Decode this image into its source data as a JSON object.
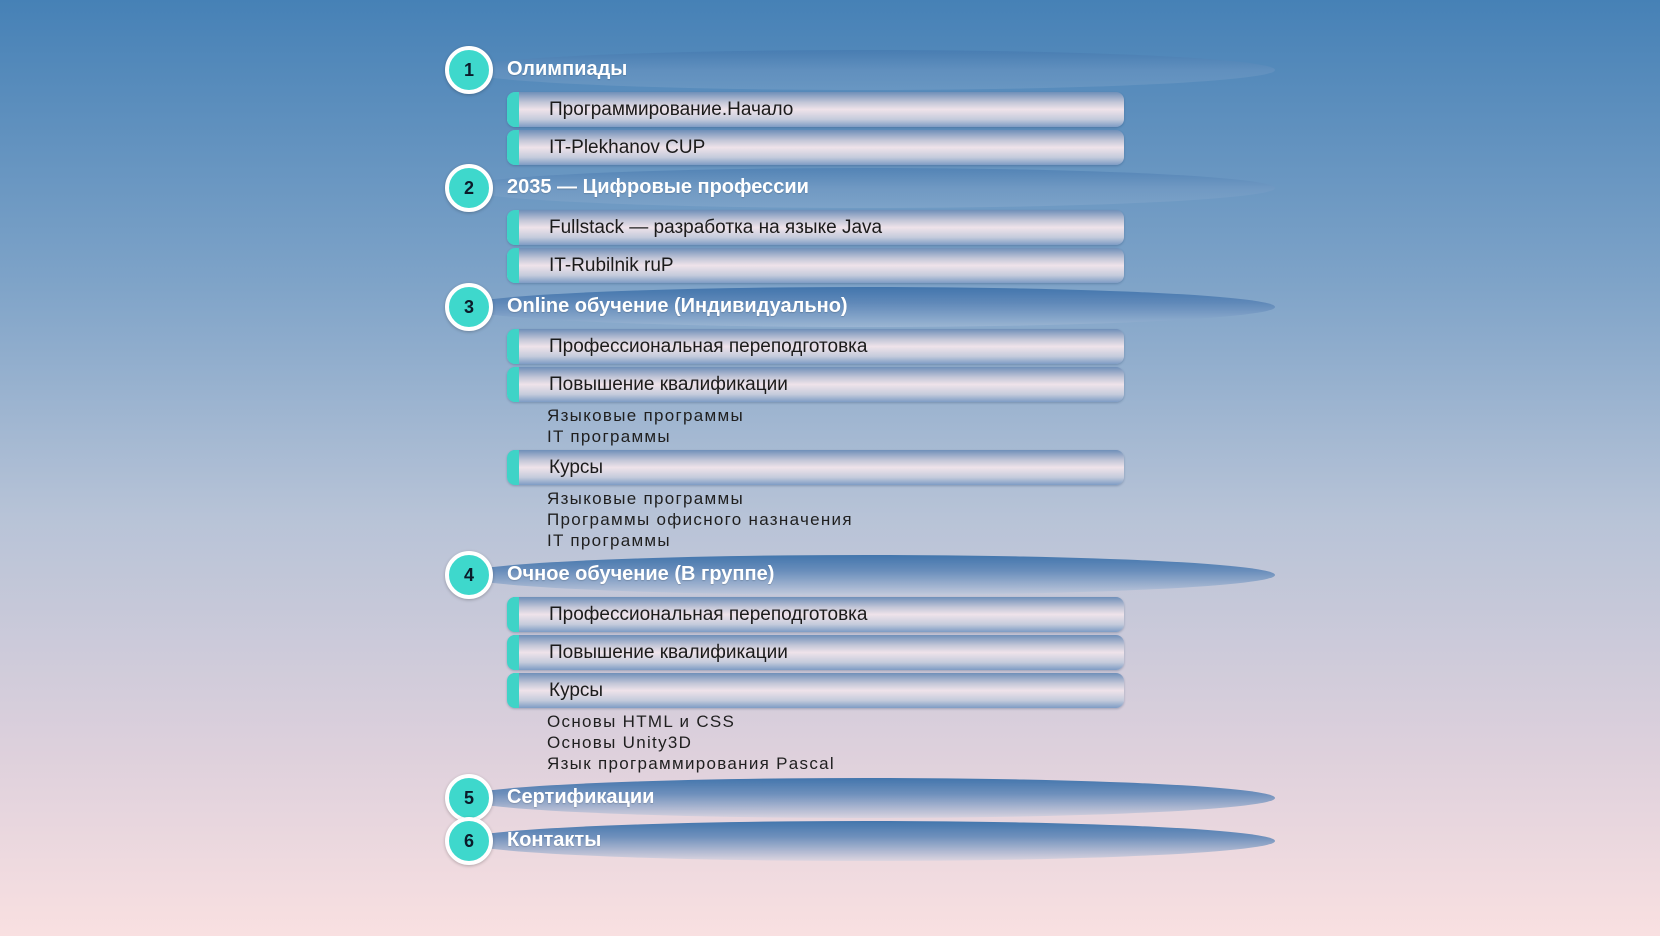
{
  "sections": [
    {
      "number": "1",
      "title": "Олимпиады",
      "items": [
        {
          "label": "Программирование.Начало",
          "subitems": []
        },
        {
          "label": "IT-Plekhanov CUP",
          "subitems": []
        }
      ]
    },
    {
      "number": "2",
      "title": "2035 — Цифровые профессии",
      "items": [
        {
          "label": "Fullstack — разработка на языке Java",
          "subitems": []
        },
        {
          "label": "IT-Rubilnik ruP",
          "subitems": []
        }
      ]
    },
    {
      "number": "3",
      "title": "Online обучение (Индивидуально)",
      "items": [
        {
          "label": "Профессиональная переподготовка",
          "subitems": []
        },
        {
          "label": "Повышение квалификации",
          "subitems": [
            "Языковые программы",
            "IT программы"
          ]
        },
        {
          "label": "Курсы",
          "subitems": [
            "Языковые программы",
            "Программы офисного назначения",
            "IT программы"
          ]
        }
      ]
    },
    {
      "number": "4",
      "title": "Очное обучение (В группе)",
      "items": [
        {
          "label": "Профессиональная переподготовка",
          "subitems": []
        },
        {
          "label": "Повышение квалификации",
          "subitems": []
        },
        {
          "label": "Курсы",
          "subitems": [
            "Основы HTML и CSS",
            "Основы Unity3D",
            "Язык программирования Pascal"
          ]
        }
      ]
    },
    {
      "number": "5",
      "title": "Сертификации",
      "items": []
    },
    {
      "number": "6",
      "title": "Контакты",
      "items": []
    }
  ],
  "colors": {
    "badge": "#3ed8cc",
    "accent": "#3fd3c7",
    "background_top": "#4681b6",
    "background_bottom": "#f9e0e1"
  }
}
